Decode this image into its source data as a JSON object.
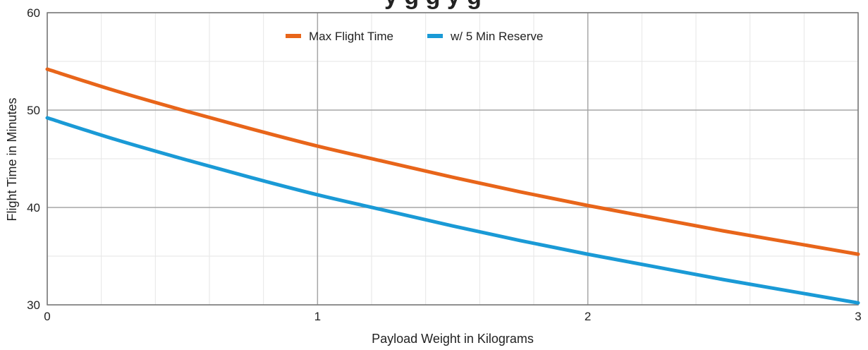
{
  "chart_data": {
    "type": "line",
    "title": "",
    "xlabel": "Payload Weight in Kilograms",
    "ylabel": "Flight Time in Minutes",
    "xlim": [
      0,
      3
    ],
    "ylim": [
      30,
      60
    ],
    "x_ticks": [
      "0",
      "1",
      "2",
      "3"
    ],
    "y_ticks": [
      "30",
      "40",
      "50",
      "60"
    ],
    "grid": true,
    "legend_position": "top-center",
    "x": [
      0,
      0.25,
      0.5,
      0.75,
      1,
      1.25,
      1.5,
      1.75,
      2,
      2.25,
      2.5,
      2.75,
      3
    ],
    "series": [
      {
        "name": "Max Flight Time",
        "color": "#e8651a",
        "values": [
          54.2,
          52,
          50,
          48.1,
          46.3,
          44.7,
          43.1,
          41.6,
          40.2,
          38.9,
          37.6,
          36.4,
          35.2
        ]
      },
      {
        "name": "w/ 5 Min Reserve",
        "color": "#1a9ad6",
        "values": [
          49.2,
          47,
          45,
          43.1,
          41.3,
          39.7,
          38.1,
          36.6,
          35.2,
          33.9,
          32.6,
          31.4,
          30.2
        ]
      }
    ]
  }
}
